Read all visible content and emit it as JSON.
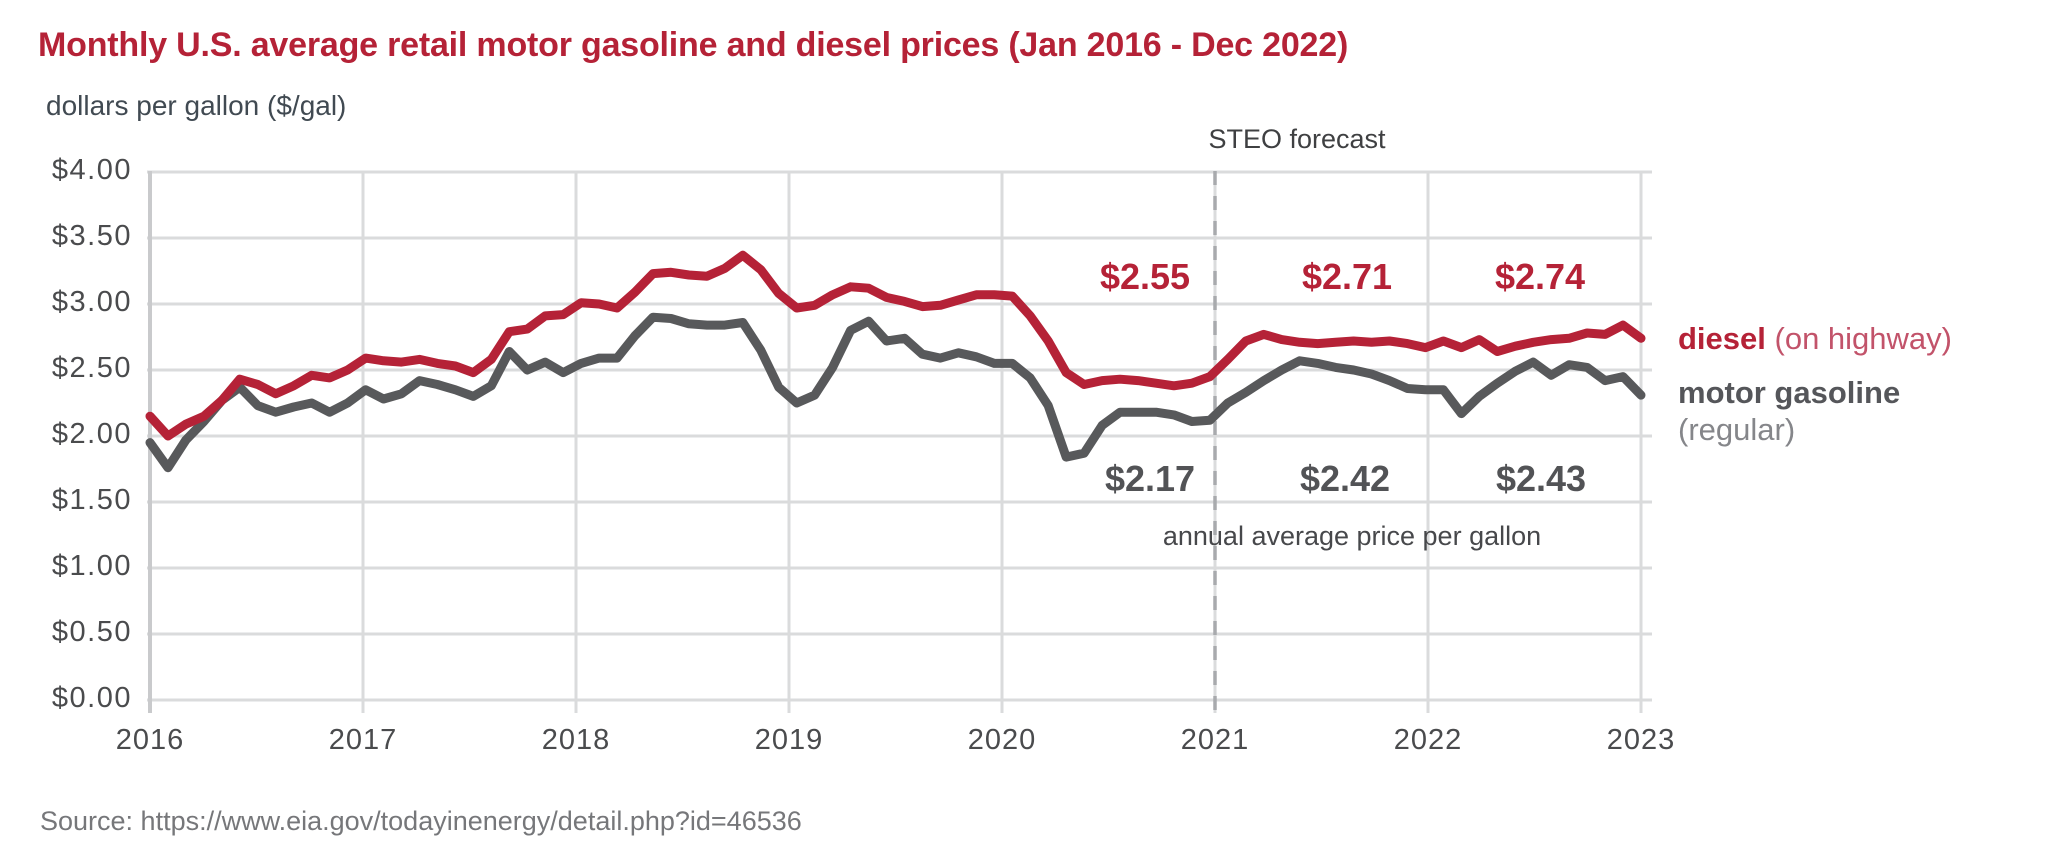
{
  "header": {
    "title": "Monthly U.S. average retail motor gasoline and diesel prices (Jan 2016 - Dec 2022)",
    "subtitle": "dollars per gallon ($/gal)"
  },
  "forecast": {
    "label": "STEO forecast"
  },
  "annotations": {
    "caption": "annual average price per gallon",
    "diesel": {
      "y2020": "$2.55",
      "y2021": "$2.71",
      "y2022": "$2.74"
    },
    "gasoline": {
      "y2020": "$2.17",
      "y2021": "$2.42",
      "y2022": "$2.43"
    }
  },
  "legend": {
    "diesel_name": "diesel",
    "diesel_qualifier": " (on highway)",
    "gasoline_name": "motor gasoline",
    "gasoline_qualifier": "(regular)"
  },
  "source": "Source: https://www.eia.gov/todayinenergy/detail.php?id=46536",
  "colors": {
    "diesel_line": "#b52237",
    "gasoline_line": "#58595b",
    "gridline": "#dadbdc",
    "axis_line": "#c9cacc",
    "forecast_divider": "#a8aaad",
    "tick_text": "#4a4b4d",
    "title_red": "#b52237",
    "dark_gray_text": "#414042"
  },
  "chart_data": {
    "type": "line",
    "title": "Monthly U.S. average retail motor gasoline and diesel prices (Jan 2016 - Dec 2022)",
    "ylabel": "dollars per gallon ($/gal)",
    "x_start": "2016-01",
    "x_end": "2022-12",
    "x_interval": "monthly",
    "ylim": [
      0,
      4
    ],
    "grid": true,
    "legend_position": "right-of-line-ends",
    "forecast_start_year": 2021,
    "forecast_note": "STEO forecast",
    "xticks": [
      {
        "label": "2016",
        "year": 2016
      },
      {
        "label": "2017",
        "year": 2017
      },
      {
        "label": "2018",
        "year": 2018
      },
      {
        "label": "2019",
        "year": 2019
      },
      {
        "label": "2020",
        "year": 2020
      },
      {
        "label": "2021",
        "year": 2021
      },
      {
        "label": "2022",
        "year": 2022
      },
      {
        "label": "2023",
        "year": 2023
      }
    ],
    "yticks": [
      {
        "label": "$0.00",
        "value": 0.0
      },
      {
        "label": "$0.50",
        "value": 0.5
      },
      {
        "label": "$1.00",
        "value": 1.0
      },
      {
        "label": "$1.50",
        "value": 1.5
      },
      {
        "label": "$2.00",
        "value": 2.0
      },
      {
        "label": "$2.50",
        "value": 2.5
      },
      {
        "label": "$3.00",
        "value": 3.0
      },
      {
        "label": "$3.50",
        "value": 3.5
      },
      {
        "label": "$4.00",
        "value": 4.0
      }
    ],
    "series": [
      {
        "name": "motor gasoline (regular)",
        "color": "#58595b",
        "values": [
          1.95,
          1.76,
          1.97,
          2.11,
          2.27,
          2.37,
          2.23,
          2.18,
          2.22,
          2.25,
          2.18,
          2.25,
          2.35,
          2.28,
          2.32,
          2.42,
          2.39,
          2.35,
          2.3,
          2.38,
          2.64,
          2.5,
          2.56,
          2.48,
          2.55,
          2.59,
          2.59,
          2.76,
          2.9,
          2.89,
          2.85,
          2.84,
          2.84,
          2.86,
          2.65,
          2.37,
          2.25,
          2.31,
          2.52,
          2.8,
          2.87,
          2.72,
          2.74,
          2.62,
          2.59,
          2.63,
          2.6,
          2.55,
          2.55,
          2.44,
          2.23,
          1.84,
          1.87,
          2.08,
          2.18,
          2.18,
          2.18,
          2.16,
          2.11,
          2.12,
          2.25,
          2.33,
          2.42,
          2.5,
          2.57,
          2.55,
          2.52,
          2.5,
          2.47,
          2.42,
          2.36,
          2.35,
          2.35,
          2.17,
          2.3,
          2.4,
          2.49,
          2.56,
          2.46,
          2.54,
          2.52,
          2.42,
          2.45,
          2.31
        ]
      },
      {
        "name": "diesel (on highway)",
        "color": "#b52237",
        "values": [
          2.15,
          2.0,
          2.09,
          2.15,
          2.27,
          2.43,
          2.39,
          2.32,
          2.38,
          2.46,
          2.44,
          2.5,
          2.59,
          2.57,
          2.56,
          2.58,
          2.55,
          2.53,
          2.48,
          2.58,
          2.79,
          2.81,
          2.91,
          2.92,
          3.01,
          3.0,
          2.97,
          3.09,
          3.23,
          3.24,
          3.22,
          3.21,
          3.27,
          3.37,
          3.26,
          3.08,
          2.97,
          2.99,
          3.07,
          3.13,
          3.12,
          3.05,
          3.02,
          2.98,
          2.99,
          3.03,
          3.07,
          3.07,
          3.06,
          2.91,
          2.72,
          2.48,
          2.39,
          2.42,
          2.43,
          2.42,
          2.4,
          2.38,
          2.4,
          2.45,
          2.58,
          2.72,
          2.77,
          2.73,
          2.71,
          2.7,
          2.71,
          2.72,
          2.71,
          2.72,
          2.7,
          2.67,
          2.72,
          2.67,
          2.73,
          2.64,
          2.68,
          2.71,
          2.73,
          2.74,
          2.78,
          2.77,
          2.84,
          2.74
        ]
      }
    ],
    "annual_averages": {
      "diesel": {
        "2020": 2.55,
        "2021": 2.71,
        "2022": 2.74
      },
      "motor_gasoline": {
        "2020": 2.17,
        "2021": 2.42,
        "2022": 2.43
      }
    }
  }
}
